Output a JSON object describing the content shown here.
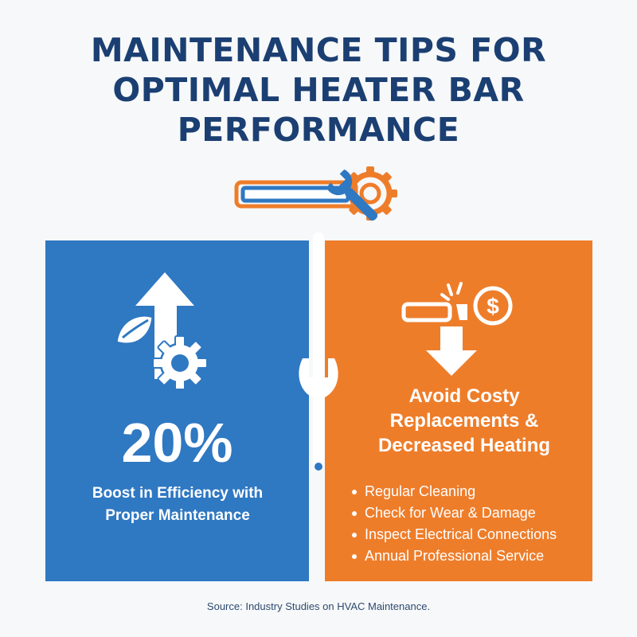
{
  "title": {
    "line1": "MAINTENANCE TIPS FOR",
    "line2": "OPTIMAL HEATER BAR",
    "line3": "PERFORMANCE"
  },
  "colors": {
    "title": "#1b3f72",
    "blue_panel": "#2f78c2",
    "orange_panel": "#ee7d2a",
    "background": "#f7f8f9"
  },
  "icons": {
    "header": "heater-bar-wrench-gear-icon",
    "blue_panel": "efficiency-arrow-leaf-gear-icon",
    "divider": "wrench-icon",
    "orange_panel": "broken-bar-cost-icon"
  },
  "blue_panel": {
    "stat": "20%",
    "caption": "Boost in Efficiency with Proper Maintenance"
  },
  "orange_panel": {
    "heading_line1": "Avoid Costy",
    "heading_line2": "Replacements &",
    "heading_line3": "Decreased Heating",
    "tips": [
      "Regular Cleaning",
      "Check for Wear & Damage",
      "Inspect Electrical Connections",
      "Annual Professional Service"
    ]
  },
  "source": "Source: Industry Studies on HVAC Maintenance."
}
